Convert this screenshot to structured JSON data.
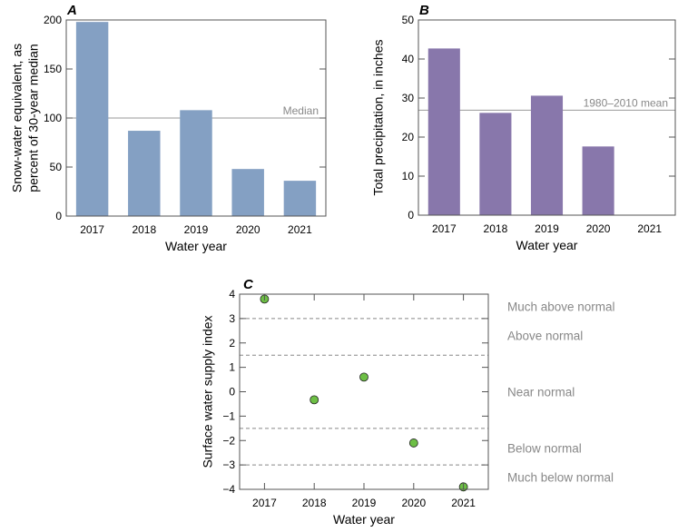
{
  "chart_data": [
    {
      "panel": "A",
      "type": "bar",
      "categories": [
        "2017",
        "2018",
        "2019",
        "2020",
        "2021"
      ],
      "values": [
        198,
        87,
        108,
        48,
        36
      ],
      "xlabel": "Water year",
      "ylabel_lines": [
        "Snow-water equivalent, as",
        "percent of 30-year median"
      ],
      "ylim": [
        0,
        200
      ],
      "yticks": [
        0,
        50,
        100,
        150,
        200
      ],
      "reference_line": {
        "value": 100,
        "label": "Median"
      },
      "color": "#84a0c3"
    },
    {
      "panel": "B",
      "type": "bar",
      "categories": [
        "2017",
        "2018",
        "2019",
        "2020",
        "2021"
      ],
      "values": [
        42.7,
        26.2,
        30.6,
        17.6,
        null
      ],
      "xlabel": "Water year",
      "ylabel_lines": [
        "Total precipitation, in inches"
      ],
      "ylim": [
        0,
        50
      ],
      "yticks": [
        0,
        10,
        20,
        30,
        40,
        50
      ],
      "reference_line": {
        "value": 26.9,
        "label": "1980–2010 mean"
      },
      "color": "#8877ab"
    },
    {
      "panel": "C",
      "type": "scatter",
      "categories": [
        "2017",
        "2018",
        "2019",
        "2020",
        "2021"
      ],
      "values": [
        3.8,
        -0.33,
        0.6,
        -2.1,
        -3.9
      ],
      "xlabel": "Water year",
      "ylabel_lines": [
        "Surface water supply index"
      ],
      "ylim": [
        -4,
        4
      ],
      "yticks": [
        -4,
        -3,
        -2,
        -1,
        0,
        1,
        2,
        3,
        4
      ],
      "ytick_labels": [
        "−4",
        "−3",
        "−2",
        "−1",
        "0",
        "1",
        "2",
        "3",
        "4"
      ],
      "thresholds": [
        3,
        1.5,
        -1.5,
        -3
      ],
      "zones": [
        {
          "label": "Much above normal",
          "center": 3.5
        },
        {
          "label": "Above normal",
          "center": 2.3
        },
        {
          "label": "Near normal",
          "center": 0
        },
        {
          "label": "Below normal",
          "center": -2.3
        },
        {
          "label": "Much below normal",
          "center": -3.5
        }
      ],
      "color": "#6dbf45"
    }
  ]
}
